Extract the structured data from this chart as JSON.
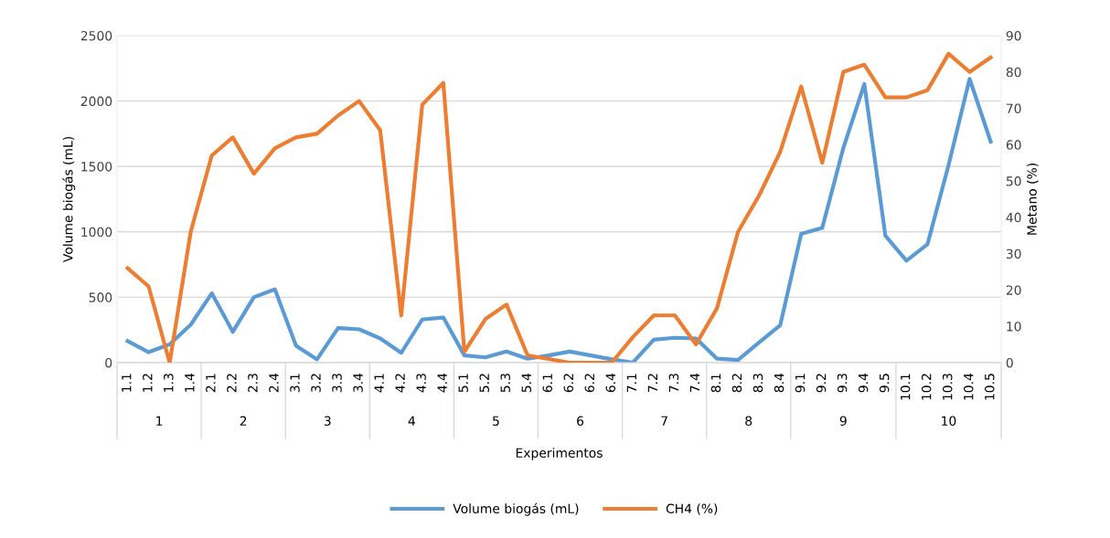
{
  "chart_data": {
    "type": "line",
    "xlabel": "Experimentos",
    "ylabel": "Volume biogás (mL)",
    "y2label": "Metano (%)",
    "categories": [
      "1.1",
      "1.2",
      "1.3",
      "1.4",
      "2.1",
      "2.2",
      "2.3",
      "2.4",
      "3.1",
      "3.2",
      "3.3",
      "3.4",
      "4.1",
      "4.2",
      "4.3",
      "4.4",
      "5.1",
      "5.2",
      "5.3",
      "5.4",
      "6.1",
      "6.2",
      "6.2",
      "6.4",
      "7.1",
      "7.2",
      "7.3",
      "7.4",
      "8.1",
      "8.2",
      "8.3",
      "8.4",
      "9.1",
      "9.2",
      "9.3",
      "9.4",
      "9.5",
      "10.1",
      "10.2",
      "10.3",
      "10.4",
      "10.5"
    ],
    "annotations": [
      "1",
      "2",
      "3",
      "4",
      "5",
      "6",
      "7",
      "8",
      "9",
      "10"
    ],
    "series": [
      {
        "name": "Volume biogás (mL)",
        "color": "#5b9bd5",
        "values": [
          165,
          80,
          140,
          290,
          530,
          235,
          500,
          560,
          130,
          25,
          265,
          255,
          185,
          75,
          330,
          345,
          55,
          40,
          85,
          30,
          55,
          85,
          55,
          25,
          0,
          175,
          190,
          185,
          30,
          20,
          155,
          285,
          985,
          1030,
          1640,
          2130,
          970,
          780,
          905,
          1510,
          2170,
          1690
        ]
      },
      {
        "name": "CH4 (%)",
        "color": "#ed7d31",
        "axis": "y2",
        "values": [
          26,
          21,
          0,
          36,
          57,
          62,
          52,
          59,
          62,
          63,
          68,
          72,
          64,
          13,
          71,
          77,
          3,
          12,
          16,
          2,
          1,
          0,
          0,
          0,
          7,
          13,
          13,
          5,
          15,
          36,
          46,
          58,
          76,
          55,
          80,
          82,
          73,
          73,
          75,
          85,
          80,
          84
        ]
      }
    ],
    "ylim": [
      0,
      2500
    ],
    "yticks": [
      0,
      500,
      1000,
      1500,
      2000,
      2500
    ],
    "y2lim": [
      0,
      90
    ],
    "y2ticks": [
      0,
      10,
      20,
      30,
      40,
      50,
      60,
      70,
      80,
      90
    ],
    "grid": "y",
    "legend": "bottom",
    "marker": "none",
    "line_style": "solid"
  }
}
